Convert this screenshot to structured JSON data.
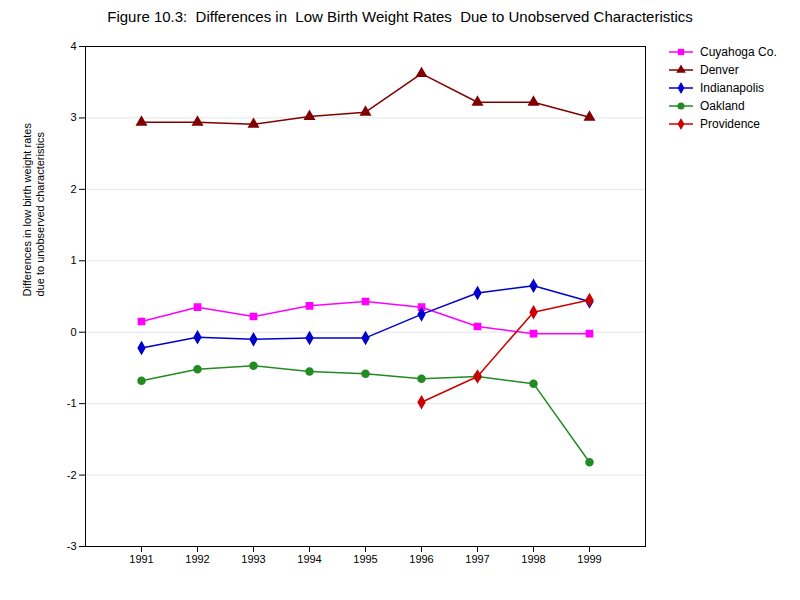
{
  "chart_data": {
    "type": "line",
    "title": "Figure 10.3:  Differences in  Low Birth Weight Rates  Due to Unobserved Characteristics",
    "ylabel": "Differences in low birth weight rates\ndue to unobserved characteristics",
    "x": [
      1991,
      1992,
      1993,
      1994,
      1995,
      1996,
      1997,
      1998,
      1999
    ],
    "series": [
      {
        "name": "Cuyahoga Co.",
        "color": "#FF00FF",
        "marker": "square",
        "values": [
          0.15,
          0.35,
          0.22,
          0.37,
          0.43,
          0.35,
          0.08,
          -0.02,
          -0.02
        ]
      },
      {
        "name": "Denver",
        "color": "#800000",
        "marker": "triangle",
        "values": [
          2.94,
          2.94,
          2.91,
          3.02,
          3.08,
          3.62,
          3.22,
          3.22,
          3.01
        ]
      },
      {
        "name": "Indianapolis",
        "color": "#0000CD",
        "marker": "diamond",
        "values": [
          -0.22,
          -0.07,
          -0.1,
          -0.08,
          -0.08,
          0.25,
          0.55,
          0.65,
          0.43
        ]
      },
      {
        "name": "Oakland",
        "color": "#228B22",
        "marker": "circle",
        "values": [
          -0.68,
          -0.52,
          -0.47,
          -0.55,
          -0.58,
          -0.65,
          -0.62,
          -0.72,
          -1.82
        ]
      },
      {
        "name": "Providence",
        "color": "#CC0000",
        "marker": "diamond",
        "values": [
          null,
          null,
          null,
          null,
          null,
          -0.98,
          -0.62,
          0.28,
          0.45
        ]
      }
    ],
    "xlim": [
      1990,
      2000
    ],
    "xticks": [
      1991,
      1992,
      1993,
      1994,
      1995,
      1996,
      1997,
      1998,
      1999
    ],
    "ylim": [
      -3,
      4
    ],
    "yticks": [
      -3,
      -2,
      -1,
      0,
      1,
      2,
      3,
      4
    ],
    "grid": true,
    "legend": "upper right"
  }
}
